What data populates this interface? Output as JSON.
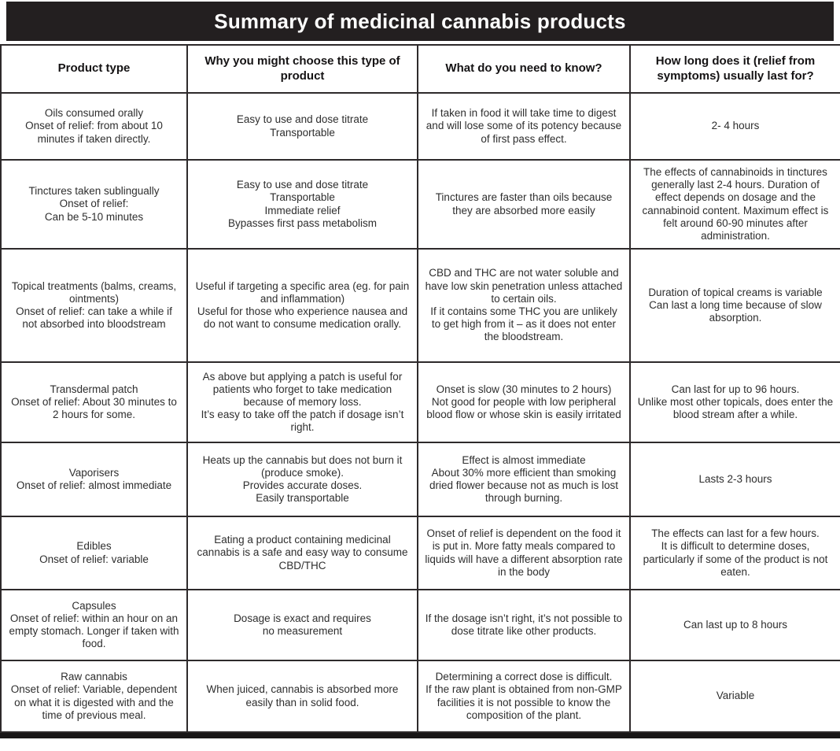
{
  "title": "Summary of medicinal cannabis products",
  "colors": {
    "title_band_bg": "#231f20",
    "title_text": "#ffffff",
    "border": "#2e2a2b",
    "cell_text": "#2e2e2e"
  },
  "columns": [
    "Product type",
    "Why you might choose this type of product",
    "What do you need to know?",
    "How long does it (relief from symptoms) usually last for?"
  ],
  "rows": [
    {
      "product_type": [
        "Oils consumed orally",
        "Onset of relief: from about 10 minutes if taken directly."
      ],
      "why_choose": [
        "Easy to use and dose titrate",
        "Transportable"
      ],
      "need_to_know": [
        "If taken in food it will take time to digest and will lose some of its potency because of first pass effect."
      ],
      "duration": [
        "2- 4 hours"
      ]
    },
    {
      "product_type": [
        "Tinctures taken sublingually",
        "Onset of relief:",
        "Can be 5-10 minutes"
      ],
      "why_choose": [
        "Easy to use and dose titrate",
        "Transportable",
        "Immediate relief",
        "Bypasses first pass metabolism"
      ],
      "need_to_know": [
        "Tinctures are faster than oils because they are absorbed more easily"
      ],
      "duration": [
        "The effects of cannabinoids in tinctures generally last 2-4 hours. Duration of effect depends on dosage and the cannabinoid content. Maximum effect is felt around 60-90 minutes after administration."
      ]
    },
    {
      "product_type": [
        "Topical treatments (balms, creams, ointments)",
        "Onset of relief: can take a while if not absorbed into bloodstream"
      ],
      "why_choose": [
        "Useful if targeting a specific area (eg. for pain and inflammation)",
        "Useful for those who experience nausea and do not want to consume medication orally."
      ],
      "need_to_know": [
        "CBD and THC are not water soluble and have low skin penetration unless attached to certain oils.",
        "If it contains some THC you are unlikely to get high from it – as it does not enter the bloodstream."
      ],
      "duration": [
        "Duration of topical creams is variable",
        "Can last a long time because of slow absorption."
      ]
    },
    {
      "product_type": [
        "Transdermal patch",
        "Onset of relief: About 30 minutes to 2 hours for some."
      ],
      "why_choose": [
        "As above but applying a patch is useful for patients who forget to take medication because of memory loss.",
        "It’s easy to take off the patch if dosage isn’t right."
      ],
      "need_to_know": [
        "Onset is slow (30 minutes to 2 hours)",
        "Not good for people with low peripheral blood flow or whose skin is easily irritated"
      ],
      "duration": [
        "Can last for up to 96 hours.",
        "Unlike most other topicals, does enter the blood stream after a while."
      ]
    },
    {
      "product_type": [
        "Vaporisers",
        "Onset of relief: almost immediate"
      ],
      "why_choose": [
        "Heats up the cannabis but does not burn it (produce smoke).",
        "Provides accurate doses.",
        "Easily transportable"
      ],
      "need_to_know": [
        "Effect is almost immediate",
        "About 30% more efficient than smoking dried flower because not as much is lost through burning."
      ],
      "duration": [
        "Lasts 2-3 hours"
      ]
    },
    {
      "product_type": [
        "Edibles",
        "Onset of relief: variable"
      ],
      "why_choose": [
        "Eating a product containing medicinal cannabis is a safe and easy way to consume CBD/THC"
      ],
      "need_to_know": [
        "Onset of relief is dependent on the food it is put in. More fatty meals compared to liquids will have a different absorption rate in the body"
      ],
      "duration": [
        "The effects can last for a few hours.",
        "It is difficult to determine doses, particularly if some of the product is not eaten."
      ]
    },
    {
      "product_type": [
        "Capsules",
        "Onset of relief: within an hour on an empty stomach. Longer if taken with food."
      ],
      "why_choose": [
        "Dosage is exact and requires",
        "no measurement"
      ],
      "need_to_know": [
        "If the dosage isn’t right, it’s not possible to dose titrate like other products."
      ],
      "duration": [
        "Can last up to 8 hours"
      ]
    },
    {
      "product_type": [
        "Raw cannabis",
        "Onset of relief: Variable, dependent on what it is digested with and the time of previous meal."
      ],
      "why_choose": [
        "When juiced, cannabis is absorbed more easily than in solid food."
      ],
      "need_to_know": [
        "Determining a correct dose is difficult.",
        "If the raw plant is obtained from non-GMP facilities it is not possible to know the composition of the plant."
      ],
      "duration": [
        "Variable"
      ]
    }
  ]
}
